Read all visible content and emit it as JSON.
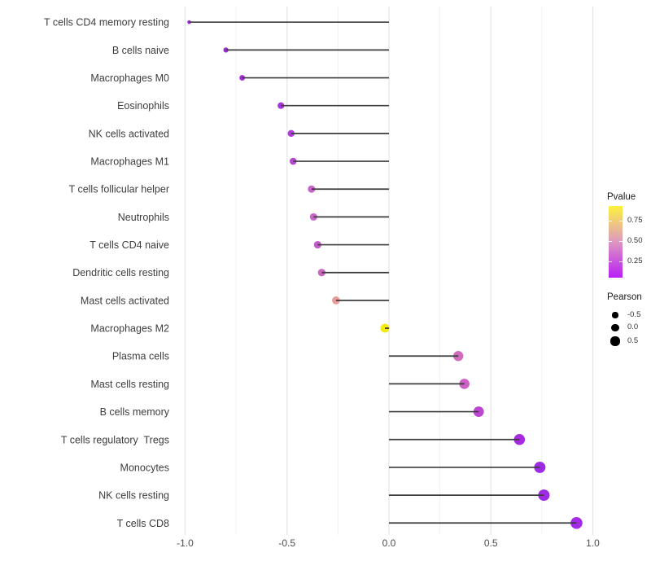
{
  "chart_data": {
    "type": "scatter",
    "variant": "lollipop",
    "title": "",
    "xlabel": "",
    "ylabel": "",
    "xlim": [
      -1.05,
      1.06
    ],
    "grid": "vertical-only",
    "legend_position": "right",
    "x_tick_values": [
      -1.0,
      -0.5,
      0.0,
      0.5,
      1.0
    ],
    "x_tick_labels": [
      "-1.0",
      "-0.5",
      "0.0",
      "0.5",
      "1.0"
    ],
    "x_minor_tick_values": [
      -0.75,
      -0.25,
      0.25,
      0.75
    ],
    "rows": [
      {
        "label": "T cells CD4 memory resting",
        "pearson": -0.98,
        "pvalue": 0.01,
        "color": "#A02CE0"
      },
      {
        "label": "B cells naive",
        "pearson": -0.8,
        "pvalue": 0.02,
        "color": "#A228E0"
      },
      {
        "label": "Macrophages M0",
        "pearson": -0.72,
        "pvalue": 0.03,
        "color": "#A52BDD"
      },
      {
        "label": "Eosinophils",
        "pearson": -0.53,
        "pvalue": 0.08,
        "color": "#A636DB"
      },
      {
        "label": "NK cells activated",
        "pearson": -0.48,
        "pvalue": 0.12,
        "color": "#AE3FD5"
      },
      {
        "label": "Macrophages M1",
        "pearson": -0.47,
        "pvalue": 0.15,
        "color": "#B546D1"
      },
      {
        "label": "T cells follicular helper",
        "pearson": -0.38,
        "pvalue": 0.28,
        "color": "#C863C8"
      },
      {
        "label": "Neutrophils",
        "pearson": -0.37,
        "pvalue": 0.27,
        "color": "#C666C6"
      },
      {
        "label": "T cells CD4 naive",
        "pearson": -0.35,
        "pvalue": 0.24,
        "color": "#C25CCA"
      },
      {
        "label": "Dendritic cells resting",
        "pearson": -0.33,
        "pvalue": 0.31,
        "color": "#CA67BE"
      },
      {
        "label": "Mast cells activated",
        "pearson": -0.26,
        "pvalue": 0.55,
        "color": "#E89B97"
      },
      {
        "label": "Macrophages M2",
        "pearson": -0.02,
        "pvalue": 0.85,
        "color": "#F2EA12"
      },
      {
        "label": "Plasma cells",
        "pearson": 0.34,
        "pvalue": 0.33,
        "color": "#CF6CBB"
      },
      {
        "label": "Mast cells resting",
        "pearson": 0.37,
        "pvalue": 0.3,
        "color": "#CB62C3"
      },
      {
        "label": "B cells memory",
        "pearson": 0.44,
        "pvalue": 0.17,
        "color": "#BC46CF"
      },
      {
        "label": "T cells regulatory  Tregs",
        "pearson": 0.64,
        "pvalue": 0.04,
        "color": "#A62BE0"
      },
      {
        "label": "Monocytes",
        "pearson": 0.74,
        "pvalue": 0.02,
        "color": "#9E2BE4"
      },
      {
        "label": "NK cells resting",
        "pearson": 0.76,
        "pvalue": 0.02,
        "color": "#9E2BE4"
      },
      {
        "label": "T cells CD8",
        "pearson": 0.92,
        "pvalue": 0.01,
        "color": "#A32BE8"
      }
    ],
    "legend": {
      "pvalue": {
        "title": "Pvalue",
        "tick_labels": [
          "0.75",
          "0.50",
          "0.25"
        ],
        "gradient_bottom_to_top": [
          "#B81FF5",
          "#CA5ADB",
          "#DD99C0",
          "#EEC583",
          "#FBF13C"
        ]
      },
      "pearson": {
        "title": "Pearson",
        "items": [
          {
            "label": "-0.5",
            "value": -0.5
          },
          {
            "label": "0.0",
            "value": 0.0
          },
          {
            "label": "0.5",
            "value": 0.5
          }
        ]
      }
    },
    "colors": {
      "stem": "#3C3C3C",
      "grid_major": "#E4E4E4",
      "grid_minor": "#F1F1F1",
      "axis_text": "#4D4D4D",
      "background": "#FFFFFF",
      "legend_dot": "#000000"
    }
  }
}
